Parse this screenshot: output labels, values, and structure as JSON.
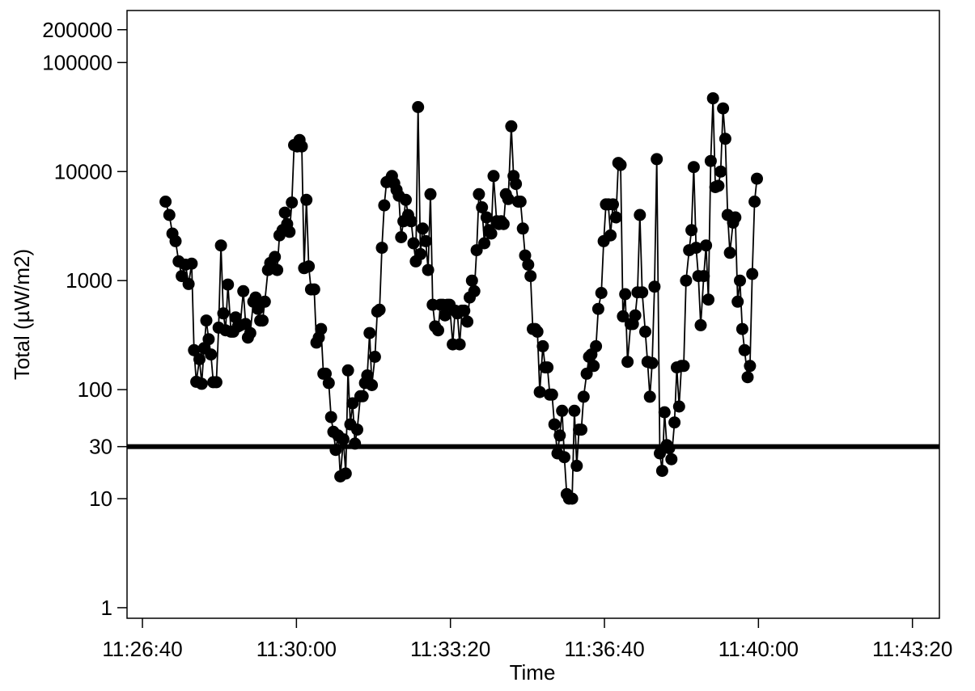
{
  "chart_data": {
    "type": "line",
    "xlabel": "Time",
    "ylabel": "Total (µW/m2)",
    "y_scale": "log",
    "ylim": [
      0.8,
      300000
    ],
    "xlim": [
      "11:26:20",
      "11:43:55"
    ],
    "grid": false,
    "x_ticks": [
      "11:26:40",
      "11:30:00",
      "11:33:20",
      "11:36:40",
      "11:40:00",
      "11:43:20"
    ],
    "y_ticks": [
      {
        "value": 1,
        "label": "1"
      },
      {
        "value": 10,
        "label": "10"
      },
      {
        "value": 30,
        "label": "30"
      },
      {
        "value": 100,
        "label": "100"
      },
      {
        "value": 1000,
        "label": "1000"
      },
      {
        "value": 10000,
        "label": "10000"
      },
      {
        "value": 100000,
        "label": "100000"
      },
      {
        "value": 200000,
        "label": "200000"
      }
    ],
    "reference_line": {
      "y": 30
    },
    "series": [
      {
        "line_color": "#000000",
        "marker": "filled-circle",
        "points": [
          [
            "11:27:10",
            5300
          ],
          [
            "11:27:15",
            4000
          ],
          [
            "11:27:19",
            2700
          ],
          [
            "11:27:23",
            2300
          ],
          [
            "11:27:27",
            1500
          ],
          [
            "11:27:31",
            1100
          ],
          [
            "11:27:36",
            1400
          ],
          [
            "11:27:40",
            930
          ],
          [
            "11:27:44",
            1430
          ],
          [
            "11:27:47",
            230
          ],
          [
            "11:27:50",
            118
          ],
          [
            "11:27:54",
            190
          ],
          [
            "11:27:57",
            113
          ],
          [
            "11:28:00",
            240
          ],
          [
            "11:28:03",
            430
          ],
          [
            "11:28:06",
            290
          ],
          [
            "11:28:09",
            210
          ],
          [
            "11:28:12",
            117
          ],
          [
            "11:28:16",
            117
          ],
          [
            "11:28:19",
            370
          ],
          [
            "11:28:22",
            2100
          ],
          [
            "11:28:25",
            500
          ],
          [
            "11:28:28",
            350
          ],
          [
            "11:28:31",
            920
          ],
          [
            "11:28:35",
            340
          ],
          [
            "11:28:38",
            340
          ],
          [
            "11:28:41",
            460
          ],
          [
            "11:28:44",
            380
          ],
          [
            "11:28:47",
            390
          ],
          [
            "11:28:51",
            800
          ],
          [
            "11:28:54",
            400
          ],
          [
            "11:28:57",
            300
          ],
          [
            "11:29:00",
            330
          ],
          [
            "11:29:04",
            640
          ],
          [
            "11:29:07",
            700
          ],
          [
            "11:29:10",
            550
          ],
          [
            "11:29:13",
            430
          ],
          [
            "11:29:16",
            430
          ],
          [
            "11:29:19",
            640
          ],
          [
            "11:29:23",
            1250
          ],
          [
            "11:29:26",
            1450
          ],
          [
            "11:29:29",
            1300
          ],
          [
            "11:29:32",
            1650
          ],
          [
            "11:29:35",
            1250
          ],
          [
            "11:29:38",
            2600
          ],
          [
            "11:29:42",
            2900
          ],
          [
            "11:29:45",
            4200
          ],
          [
            "11:29:48",
            3300
          ],
          [
            "11:29:51",
            2800
          ],
          [
            "11:29:54",
            5200
          ],
          [
            "11:29:57",
            17500
          ],
          [
            "11:30:01",
            17000
          ],
          [
            "11:30:04",
            19500
          ],
          [
            "11:30:07",
            17000
          ],
          [
            "11:30:10",
            1300
          ],
          [
            "11:30:13",
            5500
          ],
          [
            "11:30:16",
            1350
          ],
          [
            "11:30:19",
            830
          ],
          [
            "11:30:23",
            830
          ],
          [
            "11:30:26",
            270
          ],
          [
            "11:30:29",
            300
          ],
          [
            "11:30:32",
            360
          ],
          [
            "11:30:35",
            140
          ],
          [
            "11:30:38",
            140
          ],
          [
            "11:30:42",
            115
          ],
          [
            "11:30:45",
            56
          ],
          [
            "11:30:48",
            41
          ],
          [
            "11:30:51",
            28
          ],
          [
            "11:30:54",
            38
          ],
          [
            "11:30:57",
            16
          ],
          [
            "11:31:01",
            35
          ],
          [
            "11:31:04",
            17
          ],
          [
            "11:31:07",
            150
          ],
          [
            "11:31:10",
            48
          ],
          [
            "11:31:13",
            75
          ],
          [
            "11:31:16",
            32
          ],
          [
            "11:31:19",
            43
          ],
          [
            "11:31:23",
            87
          ],
          [
            "11:31:26",
            87
          ],
          [
            "11:31:29",
            115
          ],
          [
            "11:31:32",
            135
          ],
          [
            "11:31:35",
            330
          ],
          [
            "11:31:38",
            110
          ],
          [
            "11:31:42",
            200
          ],
          [
            "11:31:45",
            520
          ],
          [
            "11:31:48",
            540
          ],
          [
            "11:31:51",
            2000
          ],
          [
            "11:31:54",
            4900
          ],
          [
            "11:31:57",
            8000
          ],
          [
            "11:32:01",
            8300
          ],
          [
            "11:32:04",
            9100
          ],
          [
            "11:32:07",
            7800
          ],
          [
            "11:32:10",
            6800
          ],
          [
            "11:32:13",
            6000
          ],
          [
            "11:32:16",
            2500
          ],
          [
            "11:32:19",
            3500
          ],
          [
            "11:32:22",
            5500
          ],
          [
            "11:32:25",
            4000
          ],
          [
            "11:32:29",
            3500
          ],
          [
            "11:32:32",
            2200
          ],
          [
            "11:32:35",
            1500
          ],
          [
            "11:32:38",
            39000
          ],
          [
            "11:32:41",
            1750
          ],
          [
            "11:32:44",
            3000
          ],
          [
            "11:32:48",
            2300
          ],
          [
            "11:32:51",
            1250
          ],
          [
            "11:32:54",
            6200
          ],
          [
            "11:32:57",
            600
          ],
          [
            "11:33:00",
            380
          ],
          [
            "11:33:04",
            350
          ],
          [
            "11:33:07",
            600
          ],
          [
            "11:33:10",
            600
          ],
          [
            "11:33:13",
            480
          ],
          [
            "11:33:16",
            600
          ],
          [
            "11:33:19",
            600
          ],
          [
            "11:33:23",
            260
          ],
          [
            "11:33:26",
            530
          ],
          [
            "11:33:29",
            500
          ],
          [
            "11:33:32",
            260
          ],
          [
            "11:33:35",
            530
          ],
          [
            "11:33:38",
            530
          ],
          [
            "11:33:42",
            420
          ],
          [
            "11:33:45",
            700
          ],
          [
            "11:33:48",
            1000
          ],
          [
            "11:33:51",
            800
          ],
          [
            "11:33:54",
            1900
          ],
          [
            "11:33:57",
            6200
          ],
          [
            "11:34:01",
            4700
          ],
          [
            "11:34:04",
            2200
          ],
          [
            "11:34:07",
            3800
          ],
          [
            "11:34:10",
            2900
          ],
          [
            "11:34:13",
            2700
          ],
          [
            "11:34:16",
            9100
          ],
          [
            "11:34:20",
            3500
          ],
          [
            "11:34:23",
            3300
          ],
          [
            "11:34:26",
            3500
          ],
          [
            "11:34:29",
            3300
          ],
          [
            "11:34:32",
            6200
          ],
          [
            "11:34:35",
            5600
          ],
          [
            "11:34:39",
            26000
          ],
          [
            "11:34:42",
            9100
          ],
          [
            "11:34:45",
            7700
          ],
          [
            "11:34:48",
            5300
          ],
          [
            "11:34:51",
            5300
          ],
          [
            "11:34:54",
            3000
          ],
          [
            "11:34:57",
            1700
          ],
          [
            "11:35:01",
            1400
          ],
          [
            "11:35:04",
            1100
          ],
          [
            "11:35:07",
            360
          ],
          [
            "11:35:10",
            360
          ],
          [
            "11:35:13",
            340
          ],
          [
            "11:35:16",
            95
          ],
          [
            "11:35:20",
            250
          ],
          [
            "11:35:23",
            160
          ],
          [
            "11:35:26",
            160
          ],
          [
            "11:35:29",
            90
          ],
          [
            "11:35:32",
            90
          ],
          [
            "11:35:35",
            48
          ],
          [
            "11:35:39",
            26
          ],
          [
            "11:35:42",
            38
          ],
          [
            "11:35:45",
            64
          ],
          [
            "11:35:48",
            24
          ],
          [
            "11:35:51",
            11
          ],
          [
            "11:35:54",
            10
          ],
          [
            "11:35:58",
            10
          ],
          [
            "11:36:01",
            64
          ],
          [
            "11:36:04",
            20
          ],
          [
            "11:36:07",
            43
          ],
          [
            "11:36:10",
            43
          ],
          [
            "11:36:13",
            86
          ],
          [
            "11:36:17",
            140
          ],
          [
            "11:36:20",
            200
          ],
          [
            "11:36:23",
            210
          ],
          [
            "11:36:26",
            165
          ],
          [
            "11:36:29",
            250
          ],
          [
            "11:36:32",
            550
          ],
          [
            "11:36:36",
            770
          ],
          [
            "11:36:39",
            2300
          ],
          [
            "11:36:42",
            5000
          ],
          [
            "11:36:45",
            5000
          ],
          [
            "11:36:48",
            2600
          ],
          [
            "11:36:51",
            5000
          ],
          [
            "11:36:55",
            3800
          ],
          [
            "11:36:58",
            12000
          ],
          [
            "11:37:01",
            11500
          ],
          [
            "11:37:04",
            470
          ],
          [
            "11:37:07",
            750
          ],
          [
            "11:37:10",
            180
          ],
          [
            "11:37:14",
            400
          ],
          [
            "11:37:17",
            400
          ],
          [
            "11:37:20",
            480
          ],
          [
            "11:37:23",
            780
          ],
          [
            "11:37:26",
            4000
          ],
          [
            "11:37:29",
            780
          ],
          [
            "11:37:33",
            340
          ],
          [
            "11:37:36",
            180
          ],
          [
            "11:37:39",
            86
          ],
          [
            "11:37:42",
            175
          ],
          [
            "11:37:45",
            880
          ],
          [
            "11:37:48",
            13000
          ],
          [
            "11:37:52",
            26
          ],
          [
            "11:37:55",
            18
          ],
          [
            "11:37:58",
            62
          ],
          [
            "11:38:01",
            31
          ],
          [
            "11:38:04",
            29
          ],
          [
            "11:38:07",
            23
          ],
          [
            "11:38:11",
            50
          ],
          [
            "11:38:14",
            160
          ],
          [
            "11:38:17",
            70
          ],
          [
            "11:38:20",
            165
          ],
          [
            "11:38:23",
            165
          ],
          [
            "11:38:26",
            1000
          ],
          [
            "11:38:30",
            1900
          ],
          [
            "11:38:33",
            2900
          ],
          [
            "11:38:36",
            11000
          ],
          [
            "11:38:39",
            2000
          ],
          [
            "11:38:42",
            1100
          ],
          [
            "11:38:45",
            390
          ],
          [
            "11:38:49",
            1100
          ],
          [
            "11:38:52",
            2100
          ],
          [
            "11:38:55",
            670
          ],
          [
            "11:38:58",
            12500
          ],
          [
            "11:39:01",
            47000
          ],
          [
            "11:39:04",
            7200
          ],
          [
            "11:39:08",
            7400
          ],
          [
            "11:39:11",
            10000
          ],
          [
            "11:39:14",
            38000
          ],
          [
            "11:39:17",
            20000
          ],
          [
            "11:39:20",
            4000
          ],
          [
            "11:39:23",
            1800
          ],
          [
            "11:39:27",
            3400
          ],
          [
            "11:39:30",
            3800
          ],
          [
            "11:39:33",
            640
          ],
          [
            "11:39:36",
            1000
          ],
          [
            "11:39:39",
            360
          ],
          [
            "11:39:42",
            230
          ],
          [
            "11:39:46",
            130
          ],
          [
            "11:39:49",
            165
          ],
          [
            "11:39:52",
            1150
          ],
          [
            "11:39:55",
            5300
          ],
          [
            "11:39:58",
            8600
          ]
        ]
      }
    ]
  }
}
